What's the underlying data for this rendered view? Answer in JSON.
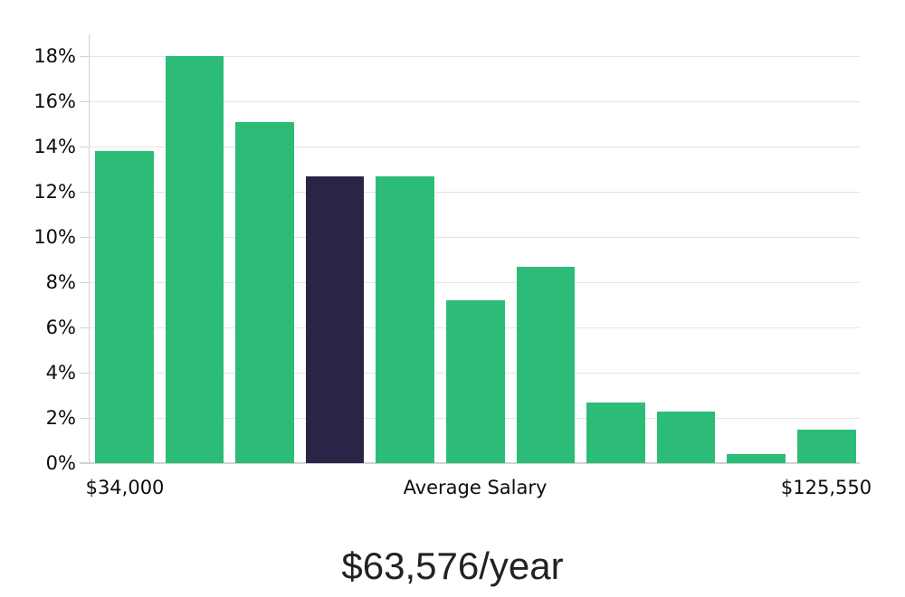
{
  "chart_data": {
    "type": "bar",
    "title": "$63,576/year",
    "values": [
      13.8,
      18.0,
      15.1,
      12.7,
      12.7,
      7.2,
      8.7,
      2.7,
      2.3,
      0.4,
      1.5
    ],
    "value_unit": "%",
    "highlight_index": 3,
    "highlight_meaning": "average-salary-bin",
    "y_axis": {
      "tick_values": [
        0,
        2,
        4,
        6,
        8,
        10,
        12,
        14,
        16,
        18
      ],
      "tick_labels": [
        "0%",
        "2%",
        "4%",
        "6%",
        "8%",
        "10%",
        "12%",
        "14%",
        "16%",
        "18%"
      ],
      "range": [
        0,
        18.96
      ]
    },
    "x_axis": {
      "left_label": "$34,000",
      "center_label": "Average Salary",
      "right_label": "$125,550"
    },
    "grid": "horizontal",
    "legend": false,
    "colors": {
      "bar": "#2dbc78",
      "highlight": "#2a2547",
      "gridline": "#e4e4e4",
      "axis": "#d2d2d2",
      "tick_text": "#0d0d0d",
      "title_text": "#222222"
    }
  }
}
